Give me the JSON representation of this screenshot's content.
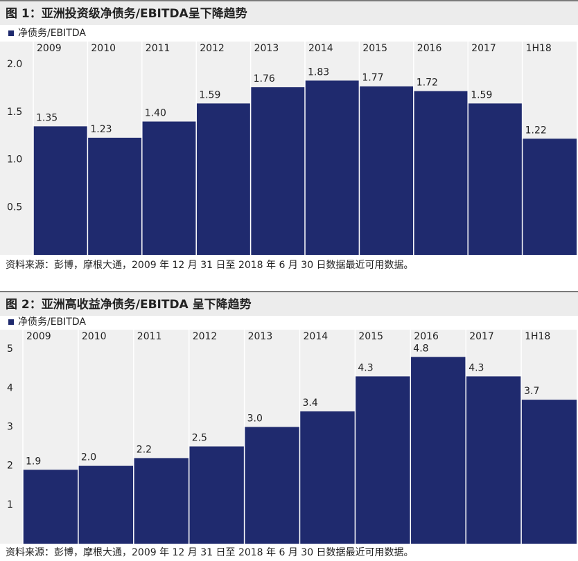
{
  "chart_data": [
    {
      "type": "bar",
      "title": "图 1：亚洲投资级净债务/EBITDA呈下降趋势",
      "categories": [
        "2009",
        "2010",
        "2011",
        "2012",
        "2013",
        "2014",
        "2015",
        "2016",
        "2017",
        "1H18"
      ],
      "series": [
        {
          "name": "净债务/EBITDA",
          "color": "#1f2a6e",
          "values": [
            1.35,
            1.23,
            1.4,
            1.59,
            1.76,
            1.83,
            1.77,
            1.72,
            1.59,
            1.22
          ],
          "value_labels": [
            "1.35",
            "1.23",
            "1.40",
            "1.59",
            "1.76",
            "1.83",
            "1.77",
            "1.72",
            "1.59",
            "1.22"
          ]
        }
      ],
      "ylim": [
        0,
        2.24
      ],
      "yticks": [
        {
          "value": 0.5,
          "label": "0.5"
        },
        {
          "value": 1,
          "label": "1.0"
        },
        {
          "value": 1.5,
          "label": "1.5"
        },
        {
          "value": 2,
          "label": "2.0"
        }
      ],
      "source": "资料来源：彭博，摩根大通，2009 年 12 月 31 日至 2018 年 6 月 30 日数据最近可用数据。"
    },
    {
      "type": "bar",
      "title": "图 2：亚洲高收益净债务/EBITDA 呈下降趋势",
      "categories": [
        "2009",
        "2010",
        "2011",
        "2012",
        "2013",
        "2014",
        "2015",
        "2016",
        "2017",
        "1H18"
      ],
      "series": [
        {
          "name": "净债务/EBITDA",
          "color": "#1f2a6e",
          "values": [
            1.9,
            2.0,
            2.2,
            2.5,
            3.0,
            3.4,
            4.3,
            4.8,
            4.3,
            3.7
          ],
          "value_labels": [
            "1.9",
            "2.0",
            "2.2",
            "2.5",
            "3.0",
            "3.4",
            "4.3",
            "4.8",
            "4.3",
            "3.7"
          ]
        }
      ],
      "ylim": [
        0,
        5.5
      ],
      "yticks": [
        1,
        2,
        3,
        4,
        5
      ],
      "source": "资料来源：彭博，摩根大通，2009 年 12 月 31 日至 2018 年 6 月 30 日数据最近可用数据。"
    }
  ]
}
